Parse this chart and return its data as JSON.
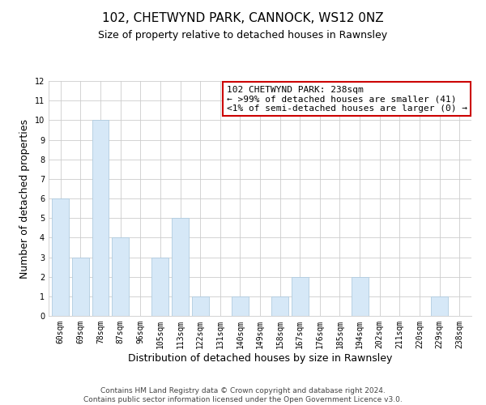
{
  "title": "102, CHETWYND PARK, CANNOCK, WS12 0NZ",
  "subtitle": "Size of property relative to detached houses in Rawnsley",
  "xlabel": "Distribution of detached houses by size in Rawnsley",
  "ylabel": "Number of detached properties",
  "categories": [
    "60sqm",
    "69sqm",
    "78sqm",
    "87sqm",
    "96sqm",
    "105sqm",
    "113sqm",
    "122sqm",
    "131sqm",
    "140sqm",
    "149sqm",
    "158sqm",
    "167sqm",
    "176sqm",
    "185sqm",
    "194sqm",
    "202sqm",
    "211sqm",
    "220sqm",
    "229sqm",
    "238sqm"
  ],
  "bar_heights": [
    6,
    3,
    10,
    4,
    0,
    3,
    5,
    1,
    0,
    1,
    0,
    1,
    2,
    0,
    0,
    2,
    0,
    0,
    0,
    1,
    0
  ],
  "bar_color": "#d6e8f7",
  "bar_edge_color": "#b0cce0",
  "ylim": [
    0,
    12
  ],
  "yticks": [
    0,
    1,
    2,
    3,
    4,
    5,
    6,
    7,
    8,
    9,
    10,
    11,
    12
  ],
  "annotation_title": "102 CHETWYND PARK: 238sqm",
  "annotation_line1": "← >99% of detached houses are smaller (41)",
  "annotation_line2": "<1% of semi-detached houses are larger (0) →",
  "annotation_box_color": "#ffffff",
  "annotation_border_color": "#cc0000",
  "footer_line1": "Contains HM Land Registry data © Crown copyright and database right 2024.",
  "footer_line2": "Contains public sector information licensed under the Open Government Licence v3.0.",
  "title_fontsize": 11,
  "subtitle_fontsize": 9,
  "axis_label_fontsize": 9,
  "tick_fontsize": 7,
  "annotation_fontsize": 8,
  "footer_fontsize": 6.5,
  "background_color": "#ffffff",
  "grid_color": "#cccccc"
}
